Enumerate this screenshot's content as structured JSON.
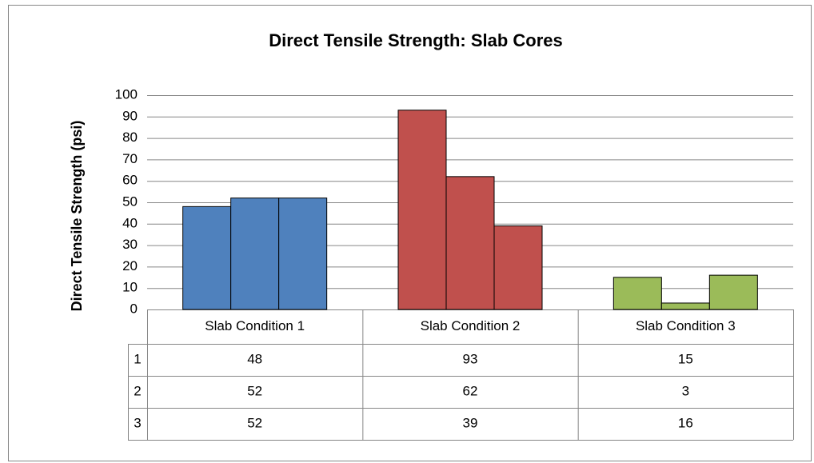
{
  "chart_data": {
    "type": "bar",
    "title": "Direct Tensile Strength: Slab Cores",
    "y_label": "Direct Tensile Strength (psi)",
    "categories": [
      "Slab Condition 1",
      "Slab Condition 2",
      "Slab Condition 3"
    ],
    "category_colors": [
      "#4f81bd",
      "#c0504d",
      "#9bbb59"
    ],
    "series": [
      {
        "name": "1",
        "values": [
          48,
          93,
          15
        ]
      },
      {
        "name": "2",
        "values": [
          52,
          62,
          3
        ]
      },
      {
        "name": "3",
        "values": [
          52,
          39,
          16
        ]
      }
    ],
    "ylim": [
      0,
      100
    ],
    "yticks": [
      0,
      10,
      20,
      30,
      40,
      50,
      60,
      70,
      80,
      90,
      100
    ],
    "grid": true,
    "data_table": true
  }
}
